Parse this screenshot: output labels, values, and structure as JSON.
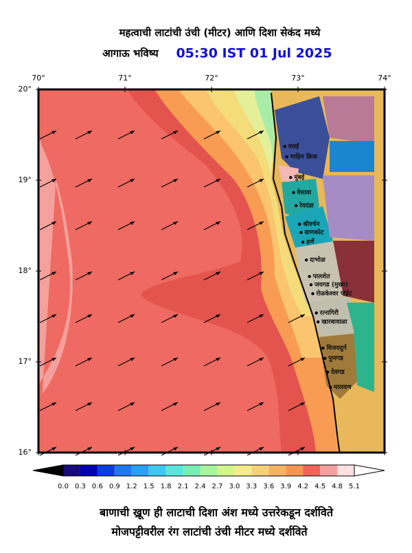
{
  "header": {
    "title": "महत्वाची लाटांची उंची (मीटर) आणि दिशा सेकंद मध्ये",
    "subtitle": "आगाऊ भविष्य",
    "time": "05:30 IST 01 Jul 2025"
  },
  "axes": {
    "lon_labels": [
      "70°",
      "71°",
      "72°",
      "73°",
      "74°"
    ],
    "lat_labels": [
      "20°",
      "19°",
      "18°",
      "17°",
      "16°"
    ]
  },
  "places": [
    "वसई",
    "माहिम क्रिक",
    "मुंबई",
    "वेसावा",
    "रेवदंडा",
    "श्रीवर्धन",
    "बाणकोट",
    "हर्णे",
    "दाभोळ",
    "पालशेत",
    "जयगड (मुख्य)",
    "रोळकेश्वर पॉईंट",
    "रत्नागिरी",
    "खारबावाळा",
    "विजयदुर्ग",
    "पुणगड",
    "देवगड",
    "मालवण"
  ],
  "colorbar": {
    "labels": [
      "0.0",
      "0.3",
      "0.6",
      "0.9",
      "1.2",
      "1.5",
      "1.8",
      "2.1",
      "2.4",
      "2.7",
      "3.0",
      "3.3",
      "3.6",
      "3.9",
      "4.2",
      "4.5",
      "4.8",
      "5.1"
    ],
    "colors": [
      "#1a0a7a",
      "#0000b4",
      "#0a3ce0",
      "#1e78f0",
      "#28a0f5",
      "#3cc8f0",
      "#5ae6dc",
      "#78f0b4",
      "#a8f5a0",
      "#d2f58c",
      "#f5eb8c",
      "#f5d278",
      "#f5b464",
      "#f59650",
      "#f0645a",
      "#f5a0a0",
      "#fde0e0"
    ]
  },
  "footer": {
    "line1": "बाणाची ख्रूण ही लाटाची दिशा अंश मध्ये उत्तरेकडून दर्शविते",
    "line2": "मोजपट्टीवरील रंग लाटांची उंची मीटर मध्ये दर्शविते"
  }
}
